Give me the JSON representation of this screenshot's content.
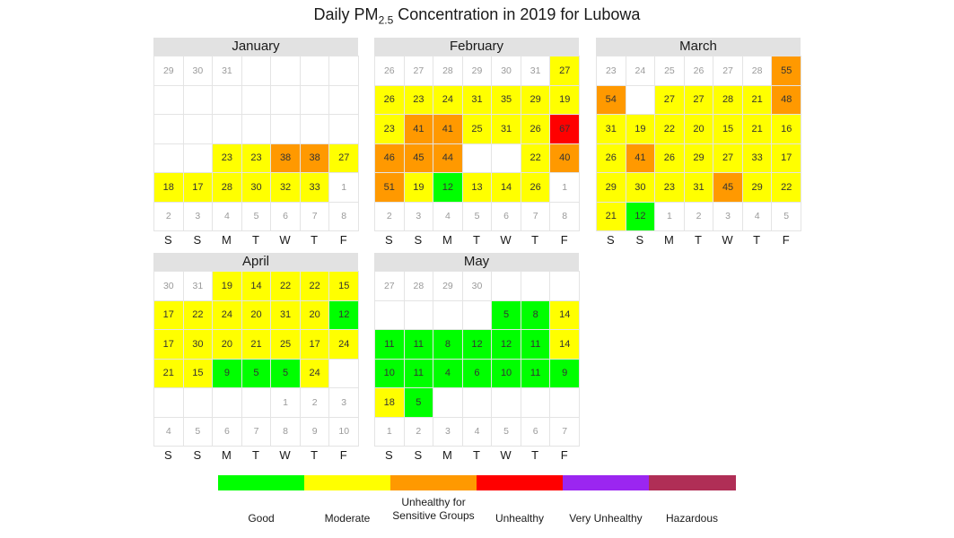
{
  "chart_data": {
    "type": "heatmap",
    "title_prefix": "Daily PM",
    "title_subscript": "2.5",
    "title_suffix": " Concentration in 2019 for Lubowa",
    "weekday_labels": [
      "S",
      "S",
      "M",
      "T",
      "W",
      "T",
      "F"
    ],
    "legend": [
      {
        "label": "Good",
        "color": "#00ff00"
      },
      {
        "label": "Moderate",
        "color": "#ffff00"
      },
      {
        "label": "Unhealthy for Sensitive Groups",
        "color": "#ff9900"
      },
      {
        "label": "Unhealthy",
        "color": "#ff0000"
      },
      {
        "label": "Very Unhealthy",
        "color": "#9b26f0"
      },
      {
        "label": "Hazardous",
        "color": "#b02e56"
      }
    ],
    "months": [
      {
        "name": "January",
        "rows": [
          [
            {
              "t": "29"
            },
            {
              "t": "30"
            },
            {
              "t": "31"
            },
            null,
            null,
            null,
            null
          ],
          [
            null,
            null,
            null,
            null,
            null,
            null,
            null
          ],
          [
            null,
            null,
            null,
            null,
            null,
            null,
            null
          ],
          [
            null,
            null,
            {
              "v": 23
            },
            {
              "v": 23
            },
            {
              "v": 38
            },
            {
              "v": 38
            },
            {
              "v": 27
            }
          ],
          [
            {
              "v": 18
            },
            {
              "v": 17
            },
            {
              "v": 28
            },
            {
              "v": 30
            },
            {
              "v": 32
            },
            {
              "v": 33
            },
            {
              "t": "1"
            }
          ],
          [
            {
              "t": "2"
            },
            {
              "t": "3"
            },
            {
              "t": "4"
            },
            {
              "t": "5"
            },
            {
              "t": "6"
            },
            {
              "t": "7"
            },
            {
              "t": "8"
            }
          ]
        ]
      },
      {
        "name": "February",
        "rows": [
          [
            {
              "t": "26"
            },
            {
              "t": "27"
            },
            {
              "t": "28"
            },
            {
              "t": "29"
            },
            {
              "t": "30"
            },
            {
              "t": "31"
            },
            {
              "v": 27
            }
          ],
          [
            {
              "v": 26
            },
            {
              "v": 23
            },
            {
              "v": 24
            },
            {
              "v": 31
            },
            {
              "v": 35
            },
            {
              "v": 29
            },
            {
              "v": 19
            }
          ],
          [
            {
              "v": 23
            },
            {
              "v": 41
            },
            {
              "v": 41
            },
            {
              "v": 25
            },
            {
              "v": 31
            },
            {
              "v": 26
            },
            {
              "v": 67
            }
          ],
          [
            {
              "v": 46
            },
            {
              "v": 45
            },
            {
              "v": 44
            },
            null,
            null,
            {
              "v": 22
            },
            {
              "v": 40
            }
          ],
          [
            {
              "v": 51
            },
            {
              "v": 19
            },
            {
              "v": 12
            },
            {
              "v": 13
            },
            {
              "v": 14
            },
            {
              "v": 26
            },
            {
              "t": "1"
            }
          ],
          [
            {
              "t": "2"
            },
            {
              "t": "3"
            },
            {
              "t": "4"
            },
            {
              "t": "5"
            },
            {
              "t": "6"
            },
            {
              "t": "7"
            },
            {
              "t": "8"
            }
          ]
        ]
      },
      {
        "name": "March",
        "rows": [
          [
            {
              "t": "23"
            },
            {
              "t": "24"
            },
            {
              "t": "25"
            },
            {
              "t": "26"
            },
            {
              "t": "27"
            },
            {
              "t": "28"
            },
            {
              "v": 55
            }
          ],
          [
            {
              "v": 54
            },
            null,
            {
              "v": 27
            },
            {
              "v": 27
            },
            {
              "v": 28
            },
            {
              "v": 21
            },
            {
              "v": 48
            }
          ],
          [
            {
              "v": 31
            },
            {
              "v": 19
            },
            {
              "v": 22
            },
            {
              "v": 20
            },
            {
              "v": 15
            },
            {
              "v": 21
            },
            {
              "v": 16
            }
          ],
          [
            {
              "v": 26
            },
            {
              "v": 41
            },
            {
              "v": 26
            },
            {
              "v": 29
            },
            {
              "v": 27
            },
            {
              "v": 33
            },
            {
              "v": 17
            }
          ],
          [
            {
              "v": 29
            },
            {
              "v": 30
            },
            {
              "v": 23
            },
            {
              "v": 31
            },
            {
              "v": 45
            },
            {
              "v": 29
            },
            {
              "v": 22
            }
          ],
          [
            {
              "v": 21
            },
            {
              "v": 12
            },
            {
              "t": "1"
            },
            {
              "t": "2"
            },
            {
              "t": "3"
            },
            {
              "t": "4"
            },
            {
              "t": "5"
            }
          ]
        ]
      },
      {
        "name": "April",
        "rows": [
          [
            {
              "t": "30"
            },
            {
              "t": "31"
            },
            {
              "v": 19
            },
            {
              "v": 14
            },
            {
              "v": 22
            },
            {
              "v": 22
            },
            {
              "v": 15
            }
          ],
          [
            {
              "v": 17
            },
            {
              "v": 22
            },
            {
              "v": 24
            },
            {
              "v": 20
            },
            {
              "v": 31
            },
            {
              "v": 20
            },
            {
              "v": 12
            }
          ],
          [
            {
              "v": 17
            },
            {
              "v": 30
            },
            {
              "v": 20
            },
            {
              "v": 21
            },
            {
              "v": 25
            },
            {
              "v": 17
            },
            {
              "v": 24
            }
          ],
          [
            {
              "v": 21
            },
            {
              "v": 15
            },
            {
              "v": 9
            },
            {
              "v": 5
            },
            {
              "v": 5
            },
            {
              "v": 24
            },
            null
          ],
          [
            null,
            null,
            null,
            null,
            {
              "t": "1"
            },
            {
              "t": "2"
            },
            {
              "t": "3"
            }
          ],
          [
            {
              "t": "4"
            },
            {
              "t": "5"
            },
            {
              "t": "6"
            },
            {
              "t": "7"
            },
            {
              "t": "8"
            },
            {
              "t": "9"
            },
            {
              "t": "10"
            }
          ]
        ]
      },
      {
        "name": "May",
        "rows": [
          [
            {
              "t": "27"
            },
            {
              "t": "28"
            },
            {
              "t": "29"
            },
            {
              "t": "30"
            },
            null,
            null,
            null
          ],
          [
            null,
            null,
            null,
            null,
            {
              "v": 5
            },
            {
              "v": 8
            },
            {
              "v": 14
            }
          ],
          [
            {
              "v": 11
            },
            {
              "v": 11
            },
            {
              "v": 8
            },
            {
              "v": 12
            },
            {
              "v": 12
            },
            {
              "v": 11
            },
            {
              "v": 14
            }
          ],
          [
            {
              "v": 10
            },
            {
              "v": 11
            },
            {
              "v": 4
            },
            {
              "v": 6
            },
            {
              "v": 10
            },
            {
              "v": 11
            },
            {
              "v": 9
            }
          ],
          [
            {
              "v": 18
            },
            {
              "v": 5
            },
            null,
            null,
            null,
            null,
            null
          ],
          [
            {
              "t": "1"
            },
            {
              "t": "2"
            },
            {
              "t": "3"
            },
            {
              "t": "4"
            },
            {
              "t": "5"
            },
            {
              "t": "6"
            },
            {
              "t": "7"
            }
          ]
        ]
      }
    ]
  }
}
